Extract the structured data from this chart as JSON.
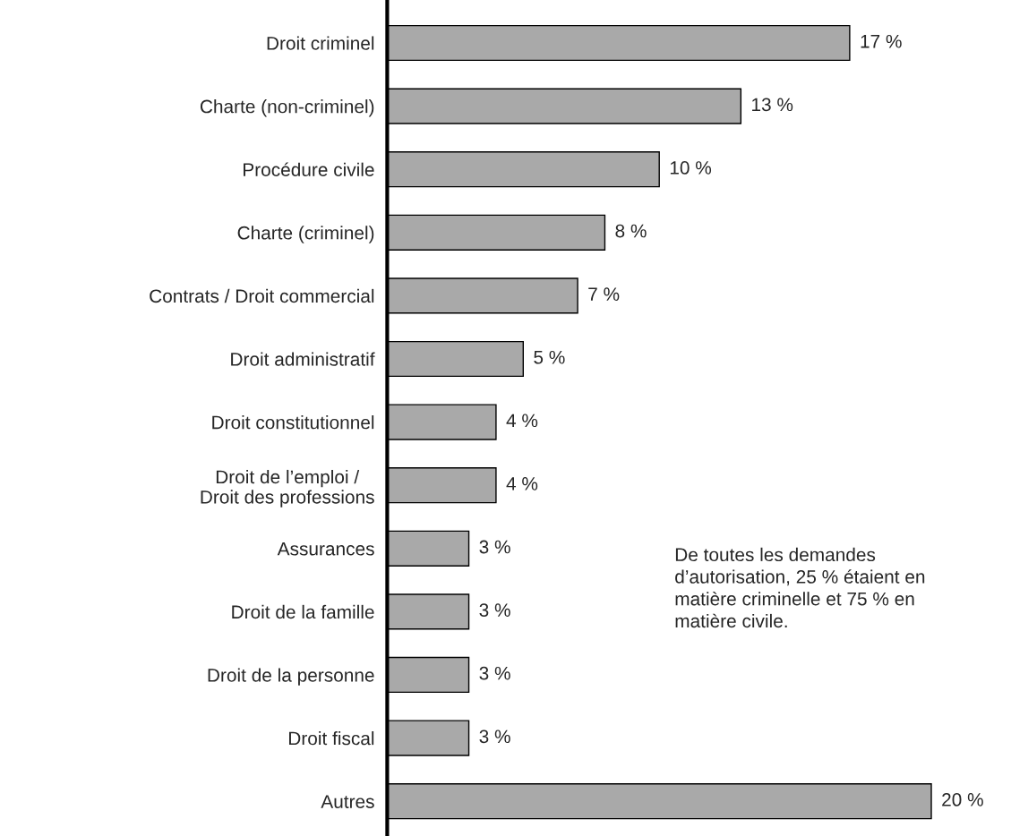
{
  "chart_data": {
    "type": "bar",
    "orientation": "horizontal",
    "categories": [
      "Droit criminel",
      "Charte (non-criminel)",
      "Procédure civile",
      "Charte (criminel)",
      "Contrats / Droit commercial",
      "Droit administratif",
      "Droit constitutionnel",
      "Droit de l’emploi /\nDroit des professions",
      "Assurances",
      "Droit de la famille",
      "Droit de la personne",
      "Droit fiscal",
      "Autres"
    ],
    "values": [
      17,
      13,
      10,
      8,
      7,
      5,
      4,
      4,
      3,
      3,
      3,
      3,
      20
    ],
    "value_labels": [
      "17 %",
      "13 %",
      "10 %",
      "8 %",
      "7 %",
      "5 %",
      "4 %",
      "4 %",
      "3 %",
      "3 %",
      "3 %",
      "3 %",
      "20 %"
    ],
    "color": "#a9a9a9",
    "annotations": [
      "De toutes les demandes\nd’autorisation, 25 % étaient en\nmatière criminelle et 75 % en\nmatière civile."
    ],
    "grid": false,
    "legend": false
  }
}
